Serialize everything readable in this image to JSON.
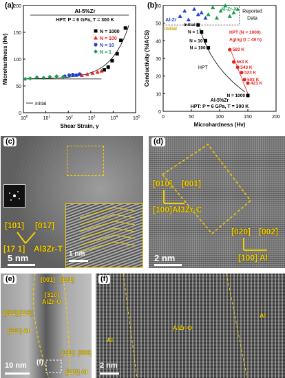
{
  "figure": {
    "panels": {
      "a": "(a)",
      "b": "(b)",
      "c": "(c)",
      "d": "(d)",
      "e": "(e)",
      "f": "(f)"
    }
  },
  "chart_data": [
    {
      "type": "scatter",
      "panel": "a",
      "title": "Al-5%Zr",
      "subtitle": "HPT: P = 6 GPa, T = 300 K",
      "xlabel": "Shear Strain, γ",
      "ylabel": "Microhardness (Hv)",
      "xscale": "log",
      "xlim": [
        1,
        100000
      ],
      "ylim": [
        0,
        200
      ],
      "xticks": [
        "10^0",
        "10^1",
        "10^2",
        "10^3",
        "10^4",
        "10^5"
      ],
      "yticks": [
        0,
        50,
        100,
        150,
        200
      ],
      "legend_position": "top-right",
      "colors": {
        "N1000": "#000000",
        "N100": "#e8221c",
        "N10": "#1f3fd0",
        "N1": "#1a9a4a"
      },
      "series": [
        {
          "name": "N = 1000",
          "marker": "square",
          "color": "#000000",
          "x": [
            4000,
            6000,
            9000,
            15000,
            22000,
            35000
          ],
          "y": [
            80,
            85,
            97,
            110,
            135,
            158
          ]
        },
        {
          "name": "N = 100",
          "marker": "triangle-up",
          "color": "#e8221c",
          "x": [
            400,
            700,
            1200,
            2000,
            3000
          ],
          "y": [
            70,
            72,
            74,
            76,
            78
          ]
        },
        {
          "name": "N = 10",
          "marker": "circle",
          "color": "#1f3fd0",
          "x": [
            70,
            110,
            160,
            230,
            320
          ],
          "y": [
            68,
            70,
            71,
            70,
            72
          ]
        },
        {
          "name": "N = 1",
          "marker": "diamond",
          "color": "#1a9a4a",
          "x": [
            1.2,
            2,
            4,
            8,
            15,
            30,
            60
          ],
          "y": [
            63,
            64,
            66,
            65,
            67,
            68,
            67
          ]
        }
      ],
      "initial_line": {
        "label": "Initial",
        "y": 63
      },
      "legend_title": "HPT: P = 6 GPa, T = 300 K"
    },
    {
      "type": "scatter",
      "panel": "b",
      "xlabel": "Microhardness (Hv)",
      "ylabel": "Conductivity (%IACS)",
      "xlim": [
        0,
        200
      ],
      "ylim": [
        0,
        60
      ],
      "xticks": [
        0,
        50,
        100,
        150,
        200
      ],
      "yticks": [
        0,
        10,
        20,
        30,
        40,
        50,
        60
      ],
      "region_label": "Reported Data",
      "labels": {
        "al_zr": "Al-Zr",
        "al_zr_x": "Al-Zr-X",
        "initial": "Initial",
        "hpt": "HPT",
        "aging": "HPT (N = 1000) Aging (t = 48 h)",
        "alloy": "Al-5%Zr",
        "cond": "HPT: P = 6 GPa, T = 300 K"
      },
      "series": [
        {
          "name": "Al-Zr",
          "marker": "triangle",
          "color": "#1f3fd0",
          "x": [
            30,
            38,
            45,
            55,
            62,
            68,
            75
          ],
          "y": [
            54,
            57,
            52,
            58,
            55,
            56,
            53
          ]
        },
        {
          "name": "Al-Zr-X",
          "marker": "triangle",
          "color": "#1a9a4a",
          "x": [
            80,
            88,
            95,
            102,
            110,
            118,
            125,
            132
          ],
          "y": [
            55,
            59,
            53,
            57,
            60,
            54,
            56,
            58
          ]
        },
        {
          "name": "HPT",
          "marker": "square",
          "color": "#000000",
          "x": [
            62,
            68,
            75,
            80,
            150
          ],
          "y": [
            49,
            45,
            40,
            36,
            9
          ],
          "labels": [
            "Initial",
            "N = 1",
            "N = 10",
            "N = 100",
            "N = 1000"
          ]
        },
        {
          "name": "HPT (N = 1000) Aging (t = 48 h)",
          "marker": "circle",
          "color": "#e8221c",
          "x": [
            118,
            125,
            132,
            139,
            144,
            150
          ],
          "y": [
            35,
            28,
            25,
            22,
            18,
            16
          ],
          "labels": [
            "583 K",
            "563 K",
            "543 K",
            "523 K",
            "503 K",
            "423 K"
          ]
        }
      ]
    }
  ],
  "tem": {
    "c": {
      "phase": "Al3Zr-T",
      "plane1": "[101]",
      "plane2": "[017]",
      "zone": "[17 1]",
      "scale_main": "5 nm",
      "scale_inset": "1 nm"
    },
    "d": {
      "phase": "[100]Al3Zr-C",
      "plane1": "[010]",
      "plane2": "[001]",
      "al_zone": "[100] Al",
      "al_plane1": "[020]",
      "al_plane2": "[002]",
      "scale": "2 nm"
    },
    "e": {
      "phase": "AlZr-O",
      "plane1": "[001]",
      "plane2": "[131]",
      "plane_c": "[310]",
      "left_zone": "[211] Al",
      "left_p1": "[022]",
      "left_p2": "[113]",
      "right_zone": "[110] Al",
      "right_p1": "[111]",
      "right_p2": "[002]",
      "region_label": "(f)",
      "scale": "10 nm"
    },
    "f": {
      "phase": "AlZr-O",
      "left": "Al",
      "right": "Al",
      "scale": "2 nm"
    }
  }
}
